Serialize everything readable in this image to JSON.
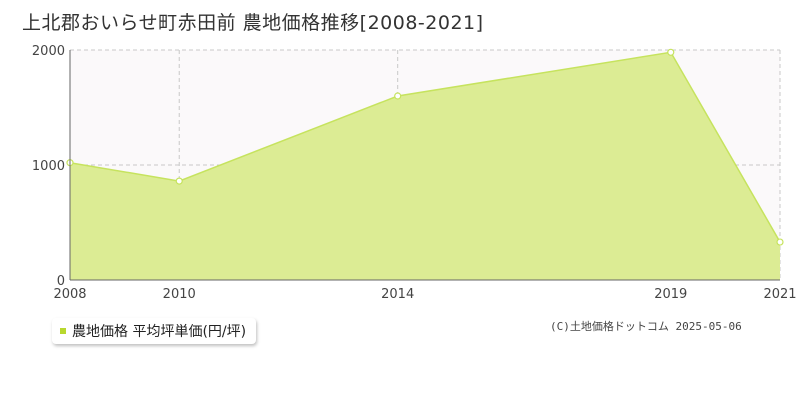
{
  "title": "上北郡おいらせ町赤田前 農地価格推移[2008-2021]",
  "legend_label": "農地価格 平均坪単価(円/坪)",
  "copyright": "(C)土地価格ドットコム 2025-05-06",
  "colors": {
    "area_fill": "#dcec94",
    "line": "#c6e35e",
    "point_fill": "#ffffff",
    "grid": "#c8c8c8",
    "plot_bg": "#fbf9fa",
    "axis": "#666666",
    "legend_swatch": "#b8d82e"
  },
  "chart_data": {
    "type": "area",
    "title": "上北郡おいらせ町赤田前 農地価格推移[2008-2021]",
    "x": [
      2008,
      2010,
      2014,
      2019,
      2021
    ],
    "x_tick_labels": [
      "2008",
      "2010",
      "2014",
      "2019",
      "2021"
    ],
    "y_tick_values": [
      0,
      1000,
      2000
    ],
    "y_tick_labels": [
      "0",
      "1000",
      "2000"
    ],
    "series": [
      {
        "name": "農地価格 平均坪単価(円/坪)",
        "values": [
          1020,
          860,
          1600,
          1980,
          330
        ]
      }
    ],
    "ylim": [
      0,
      2000
    ],
    "grid": true,
    "legend_position": "bottom-left"
  }
}
